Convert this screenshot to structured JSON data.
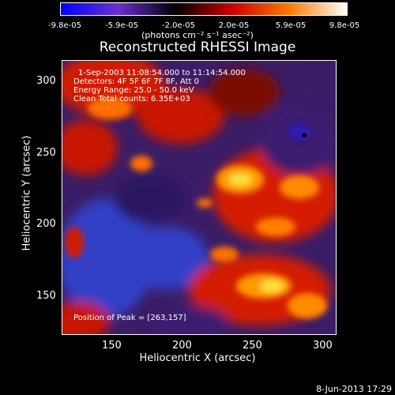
{
  "colorbar": {
    "ticks": [
      "-9.8e-05",
      "-5.9e-05",
      "-2.0e-05",
      "2.0e-05",
      "5.9e-05",
      "9.8e-05"
    ],
    "units": "(photons cm⁻² s⁻¹ asec⁻²)",
    "colors": [
      "#0000ff",
      "#6b2fd0",
      "#000000",
      "#cc0000",
      "#ff7a00",
      "#ffffff"
    ]
  },
  "title": "Reconstructed RHESSI Image",
  "annotations": {
    "time": "1-Sep-2003 11:08:54.000 to 11:14:54.000",
    "detectors": "Detectors: 4F 5F 6F 7F 8F, Att 0",
    "energy": "Energy Range: 25.0 - 50.0 keV",
    "clean": "Clean      Total counts: 6.35E+03",
    "peak": "Position of Peak = [263,157]"
  },
  "axes": {
    "xlabel": "Heliocentric X (arcsec)",
    "ylabel": "Heliocentric Y (arcsec)",
    "xticks": [
      "150",
      "200",
      "250",
      "300"
    ],
    "yticks": [
      "300",
      "250",
      "200",
      "150"
    ],
    "xrange": [
      113,
      308
    ],
    "yrange": [
      120,
      315
    ]
  },
  "timestamp": "8-Jun-2013 17:29"
}
